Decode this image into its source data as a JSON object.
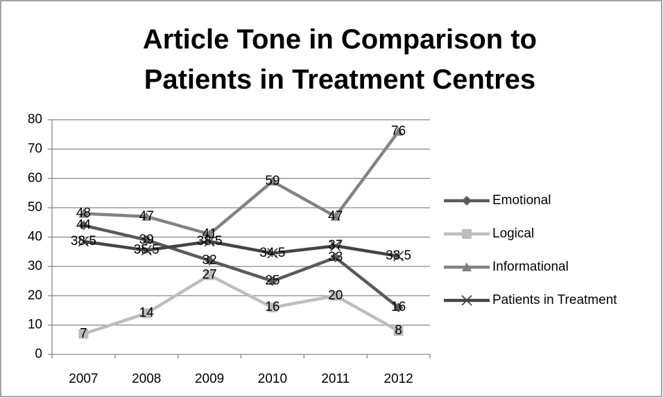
{
  "chart_data": {
    "type": "line",
    "title": "Article Tone in Comparison to Patients in Treatment Centres",
    "categories": [
      "2007",
      "2008",
      "2009",
      "2010",
      "2011",
      "2012"
    ],
    "series": [
      {
        "name": "Emotional",
        "color": "#5a5a5a",
        "marker": "diamond",
        "values": [
          44,
          39,
          32,
          25,
          33,
          16
        ]
      },
      {
        "name": "Logical",
        "color": "#bdbdbd",
        "marker": "square",
        "values": [
          7,
          14,
          27,
          16,
          20,
          8
        ]
      },
      {
        "name": "Informational",
        "color": "#828282",
        "marker": "triangle",
        "values": [
          48,
          47,
          41,
          59,
          47,
          76
        ]
      },
      {
        "name": "Patients in Treatment",
        "color": "#444444",
        "marker": "x",
        "values": [
          38.5,
          35.5,
          38.5,
          34.5,
          37,
          33.5
        ]
      }
    ],
    "ylim": [
      0,
      80
    ],
    "yticks": [
      0,
      10,
      20,
      30,
      40,
      50,
      60,
      70,
      80
    ],
    "grid": true,
    "legend": "right",
    "data_labels": true
  }
}
